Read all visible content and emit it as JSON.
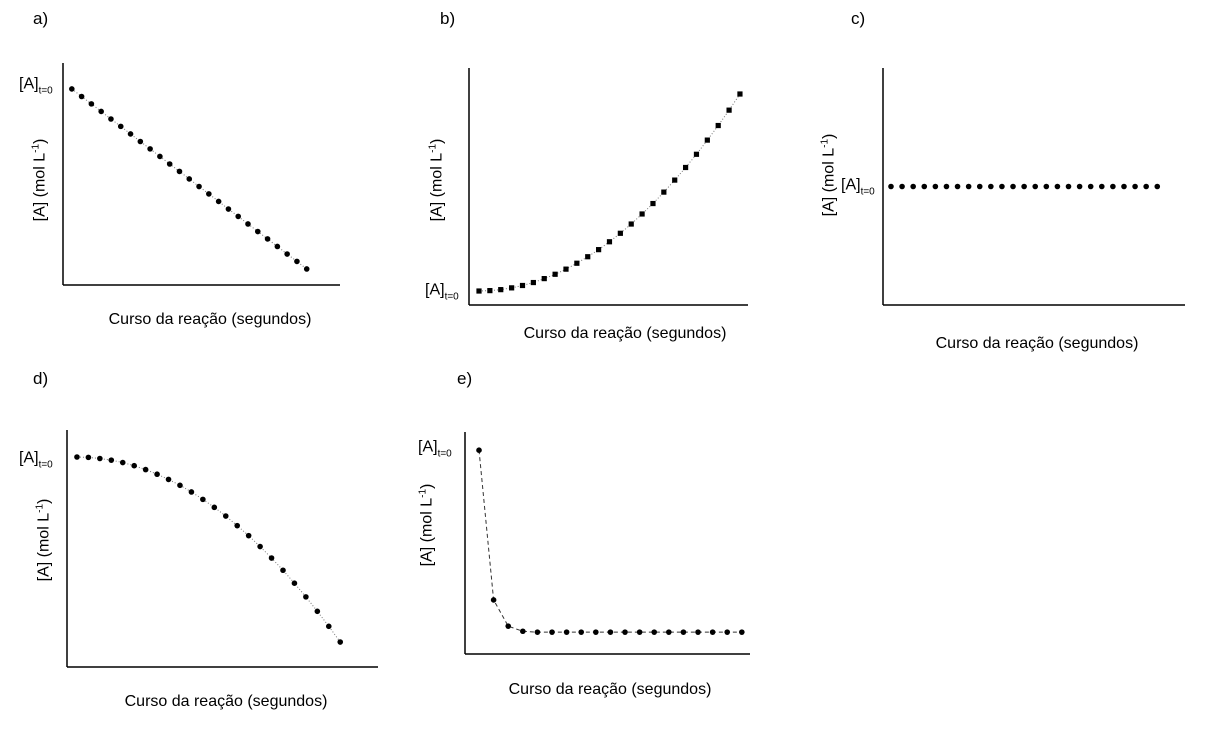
{
  "chart_data": [
    {
      "id": "a",
      "type": "scatter",
      "panel_label": "a)",
      "xlabel": "Curso da reação (segundos)",
      "ylabel": "[A] (mol L",
      "ylabel_sup": "-1",
      "ylabel_close": ")",
      "y0_label": "[A]",
      "y0_sub": "t=0",
      "marker": "circle",
      "line": "dotted",
      "x": [
        0,
        1,
        2,
        3,
        4,
        5,
        6,
        7,
        8,
        9,
        10,
        11,
        12,
        13,
        14,
        15,
        16,
        17,
        18,
        19,
        20,
        21,
        22,
        23,
        24
      ],
      "y": [
        1,
        0.958,
        0.917,
        0.875,
        0.833,
        0.792,
        0.75,
        0.708,
        0.667,
        0.625,
        0.583,
        0.542,
        0.5,
        0.458,
        0.417,
        0.375,
        0.333,
        0.292,
        0.25,
        0.208,
        0.167,
        0.125,
        0.083,
        0.042,
        0
      ],
      "xlim": [
        -0.9,
        27.4
      ],
      "ylim": [
        -0.089,
        1.144
      ]
    },
    {
      "id": "b",
      "type": "scatter",
      "panel_label": "b)",
      "xlabel": "Curso da reação (segundos)",
      "ylabel": "[A] (mol L",
      "ylabel_sup": "-1",
      "ylabel_close": ")",
      "y0_label": "[A]",
      "y0_sub": "t=0",
      "marker": "square",
      "line": "dotted",
      "x": [
        0,
        1,
        2,
        3,
        4,
        5,
        6,
        7,
        8,
        9,
        10,
        11,
        12,
        13,
        14,
        15,
        16,
        17,
        18,
        19,
        20,
        21,
        22,
        23,
        24
      ],
      "y": [
        0,
        0.002,
        0.007,
        0.016,
        0.028,
        0.043,
        0.063,
        0.085,
        0.111,
        0.141,
        0.174,
        0.21,
        0.25,
        0.293,
        0.34,
        0.391,
        0.444,
        0.502,
        0.563,
        0.627,
        0.694,
        0.766,
        0.84,
        0.918,
        1
      ],
      "xlim": [
        -0.92,
        24.74
      ],
      "ylim": [
        -0.071,
        1.132
      ]
    },
    {
      "id": "c",
      "type": "scatter",
      "panel_label": "c)",
      "xlabel": "Curso da reação (segundos)",
      "ylabel": "[A] (mol L",
      "ylabel_sup": "-1",
      "ylabel_close": ")",
      "y0_label": "[A]",
      "y0_sub": "t=0",
      "marker": "circle",
      "line": "none",
      "x": [
        0,
        1,
        2,
        3,
        4,
        5,
        6,
        7,
        8,
        9,
        10,
        11,
        12,
        13,
        14,
        15,
        16,
        17,
        18,
        19,
        20,
        21,
        22,
        23,
        24
      ],
      "y": [
        1,
        1,
        1,
        1,
        1,
        1,
        1,
        1,
        1,
        1,
        1,
        1,
        1,
        1,
        1,
        1,
        1,
        1,
        1,
        1,
        1,
        1,
        1,
        1,
        1
      ],
      "xlim": [
        -0.72,
        26.5
      ],
      "ylim": [
        0,
        2
      ]
    },
    {
      "id": "d",
      "type": "scatter",
      "panel_label": "d)",
      "xlabel": "Curso da reação (segundos)",
      "ylabel": "[A] (mol L",
      "ylabel_sup": "-1",
      "ylabel_close": ")",
      "y0_label": "[A]",
      "y0_sub": "t=0",
      "marker": "circle",
      "line": "dotted",
      "x": [
        0,
        1,
        2,
        3,
        4,
        5,
        6,
        7,
        8,
        9,
        10,
        11,
        12,
        13,
        14,
        15,
        16,
        17,
        18,
        19,
        20,
        21,
        22,
        23
      ],
      "y": [
        1,
        0.998,
        0.992,
        0.983,
        0.97,
        0.953,
        0.932,
        0.907,
        0.879,
        0.847,
        0.811,
        0.771,
        0.728,
        0.681,
        0.629,
        0.575,
        0.516,
        0.454,
        0.388,
        0.318,
        0.244,
        0.166,
        0.085,
        0
      ],
      "xlim": [
        -0.87,
        26.3
      ],
      "ylim": [
        -0.135,
        1.146
      ]
    },
    {
      "id": "e",
      "type": "scatter",
      "panel_label": "e)",
      "xlabel": "Curso da reação (segundos)",
      "ylabel": "[A] (mol L",
      "ylabel_sup": "-1",
      "ylabel_close": ")",
      "y0_label": "[A]",
      "y0_sub": "t=0",
      "marker": "circle",
      "line": "dashed",
      "x": [
        0,
        1,
        2,
        3,
        4,
        5,
        6,
        7,
        8,
        9,
        10,
        11,
        12,
        13,
        14,
        15,
        16,
        17,
        18
      ],
      "y": [
        1,
        0.177,
        0.033,
        0.005,
        0,
        0,
        0,
        0,
        0,
        0,
        0,
        0,
        0,
        0,
        0,
        0,
        0,
        0,
        0
      ],
      "xlim": [
        -0.96,
        18.56
      ],
      "ylim": [
        -0.12,
        1.1
      ]
    }
  ]
}
